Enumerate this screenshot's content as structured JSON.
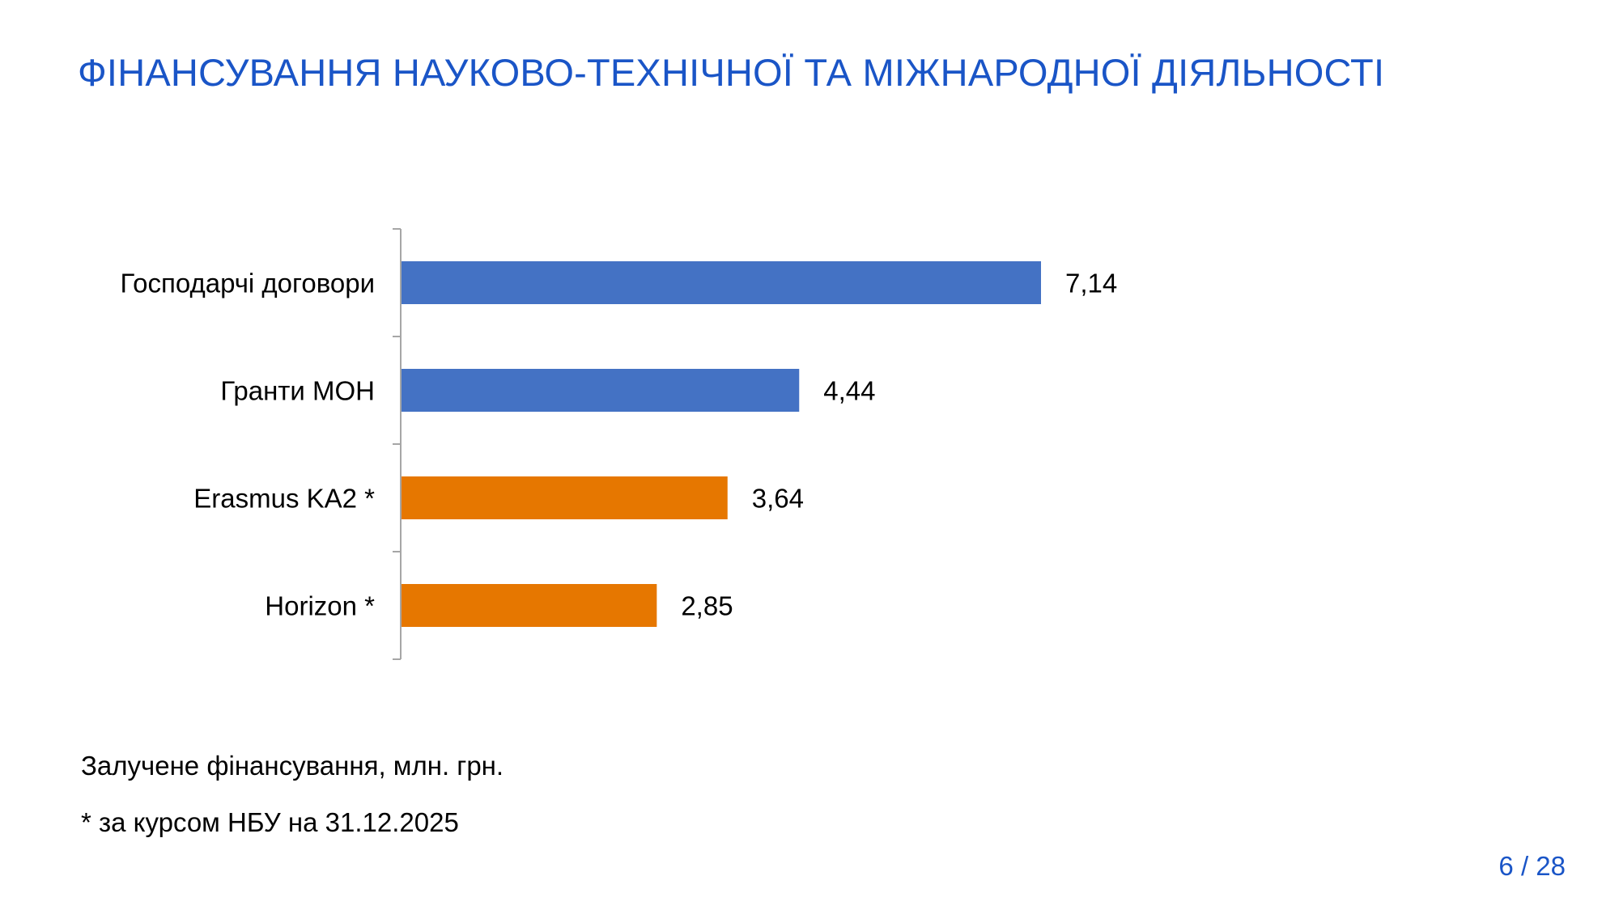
{
  "slide": {
    "title": "ФІНАНСУВАННЯ НАУКОВО-ТЕХНІЧНОЇ ТА МІЖНАРОДНОЇ ДІЯЛЬНОСТІ",
    "note_1": "Залучене фінансування, млн. грн.",
    "note_2": "* за курсом НБУ на 31.12.2025",
    "page_number": "6 / 28"
  },
  "colors": {
    "title": "#1a55c7",
    "blue_bar": "#4472c4",
    "orange_bar": "#e67700",
    "axis": "#a6a6a6"
  },
  "chart_data": {
    "type": "bar",
    "orientation": "horizontal",
    "categories": [
      "Господарчі договори",
      "Гранти МОН",
      "Erasmus KA2 *",
      "Horizon *"
    ],
    "values": [
      7.14,
      4.44,
      3.64,
      2.85
    ],
    "value_labels": [
      "7,14",
      "4,44",
      "3,64",
      "2,85"
    ],
    "bar_colors": [
      "#4472c4",
      "#4472c4",
      "#e67700",
      "#e67700"
    ],
    "xlim": [
      0,
      7.14
    ],
    "grid": false,
    "legend": "none",
    "xlabel": "",
    "ylabel": ""
  }
}
